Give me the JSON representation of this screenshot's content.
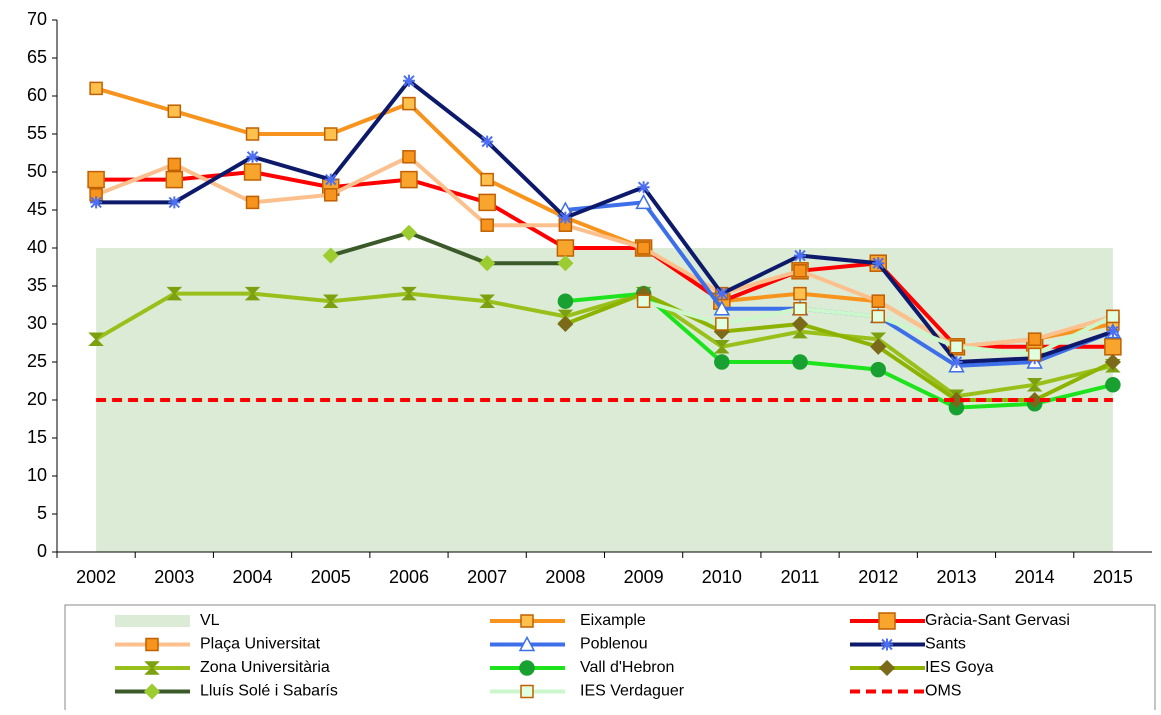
{
  "chart_data": {
    "type": "line",
    "categories": [
      "2002",
      "2003",
      "2004",
      "2005",
      "2006",
      "2007",
      "2008",
      "2009",
      "2010",
      "2011",
      "2012",
      "2013",
      "2014",
      "2015"
    ],
    "ylim": [
      0,
      70
    ],
    "yticks": [
      0,
      5,
      10,
      15,
      20,
      25,
      30,
      35,
      40,
      45,
      50,
      55,
      60,
      65,
      70
    ],
    "series": [
      {
        "name": "VL",
        "style": "area",
        "color": "#dcebd5",
        "values": [
          40,
          40,
          40,
          40,
          40,
          40,
          40,
          40,
          40,
          40,
          40,
          40,
          40,
          40
        ]
      },
      {
        "name": "Eixample",
        "color": "#f7941d",
        "marker": "square",
        "marker_color": "#ffc04d",
        "values": [
          61,
          58,
          55,
          55,
          59,
          49,
          44,
          40,
          33,
          34,
          33,
          27,
          28,
          30
        ]
      },
      {
        "name": "Gràcia-Sant Gervasi",
        "color": "#ff0000",
        "marker": "bigsquare",
        "marker_color": "#f7a52d",
        "values": [
          49,
          49,
          50,
          48,
          49,
          46,
          40,
          40,
          33,
          37,
          38,
          27,
          27,
          27
        ]
      },
      {
        "name": "Plaça Universitat",
        "color": "#fbc08d",
        "marker": "square",
        "marker_color": "#f7941d",
        "values": [
          47,
          51,
          46,
          47,
          52,
          43,
          43,
          40,
          34,
          37,
          33,
          27,
          28,
          31
        ]
      },
      {
        "name": "Poblenou",
        "color": "#3d6fe8",
        "marker": "triangle",
        "marker_color": "#ffffff",
        "values": [
          null,
          null,
          null,
          null,
          null,
          null,
          45,
          46,
          32,
          32,
          31,
          24.5,
          25,
          29
        ]
      },
      {
        "name": "Sants",
        "color": "#0d1a6b",
        "marker": "star",
        "marker_color": "#4d6ff0",
        "values": [
          46,
          46,
          52,
          49,
          62,
          54,
          44,
          48,
          34,
          39,
          38,
          25,
          25.5,
          29
        ]
      },
      {
        "name": "Zona Universitària",
        "color": "#99c01a",
        "marker": "hourglass",
        "marker_color": "#7ba010",
        "values": [
          28,
          34,
          34,
          33,
          34,
          33,
          31,
          34,
          27,
          29,
          28,
          20.5,
          22,
          24.5
        ]
      },
      {
        "name": "Vall d'Hebron",
        "color": "#1de31d",
        "marker": "circle",
        "marker_color": "#18a030",
        "values": [
          null,
          null,
          null,
          null,
          null,
          null,
          33,
          34,
          25,
          25,
          24,
          19,
          19.5,
          22
        ]
      },
      {
        "name": "IES Goya",
        "color": "#8db300",
        "marker": "diamond",
        "marker_color": "#7a6a1a",
        "values": [
          null,
          null,
          null,
          null,
          null,
          null,
          30,
          34,
          29,
          30,
          27,
          20,
          20,
          25
        ]
      },
      {
        "name": "Lluís Solé i Sabarís",
        "color": "#3b5a2a",
        "marker": "diamond",
        "marker_color": "#9ccc30",
        "values": [
          null,
          null,
          null,
          39,
          42,
          38,
          38,
          null,
          null,
          null,
          null,
          null,
          null,
          null
        ]
      },
      {
        "name": "IES Verdaguer",
        "color": "#ccf7cc",
        "marker": "square",
        "marker_color": "#e0ffe0",
        "values": [
          null,
          null,
          null,
          null,
          null,
          null,
          null,
          33,
          30,
          32,
          31,
          27,
          26,
          31
        ]
      },
      {
        "name": "OMS",
        "style": "dash",
        "color": "#ff0000",
        "values": [
          20,
          20,
          20,
          20,
          20,
          20,
          20,
          20,
          20,
          20,
          20,
          20,
          20,
          20
        ]
      }
    ]
  }
}
